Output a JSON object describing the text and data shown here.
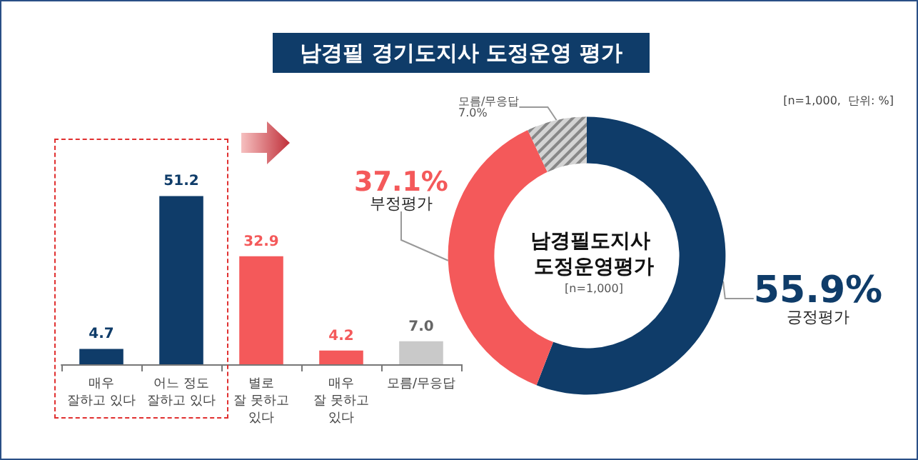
{
  "chart_data": [
    {
      "type": "bar",
      "title": "남경필 경기도지사 도정운영 평가",
      "annotations": [
        "[n=1,000,  단위: %]"
      ],
      "categories": [
        "매우\n잘하고 있다",
        "어느 정도\n잘하고 있다",
        "별로\n잘 못하고\n있다",
        "매우\n잘 못하고\n있다",
        "모름/무응답"
      ],
      "values": [
        4.7,
        51.2,
        32.9,
        4.2,
        7.0
      ],
      "colors": [
        "#0f3c69",
        "#0f3c69",
        "#f4595a",
        "#f4595a",
        "#c9c9c9"
      ],
      "value_labels": [
        "4.7",
        "51.2",
        "32.9",
        "4.2",
        "7.0"
      ],
      "tick_labels": "x",
      "legend": false
    },
    {
      "type": "donut",
      "title": "남경필도지사 도정운영평가",
      "subtitle": "[n=1,000]",
      "categories": [
        "긍정평가",
        "부정평가",
        "모름/무응답"
      ],
      "values": [
        55.9,
        37.1,
        7.0
      ],
      "colors": [
        "#0f3c69",
        "#f4595a",
        "#d4d4d4"
      ],
      "value_labels": [
        "55.9%",
        "37.1%",
        "7.0%"
      ],
      "legend": false
    }
  ]
}
